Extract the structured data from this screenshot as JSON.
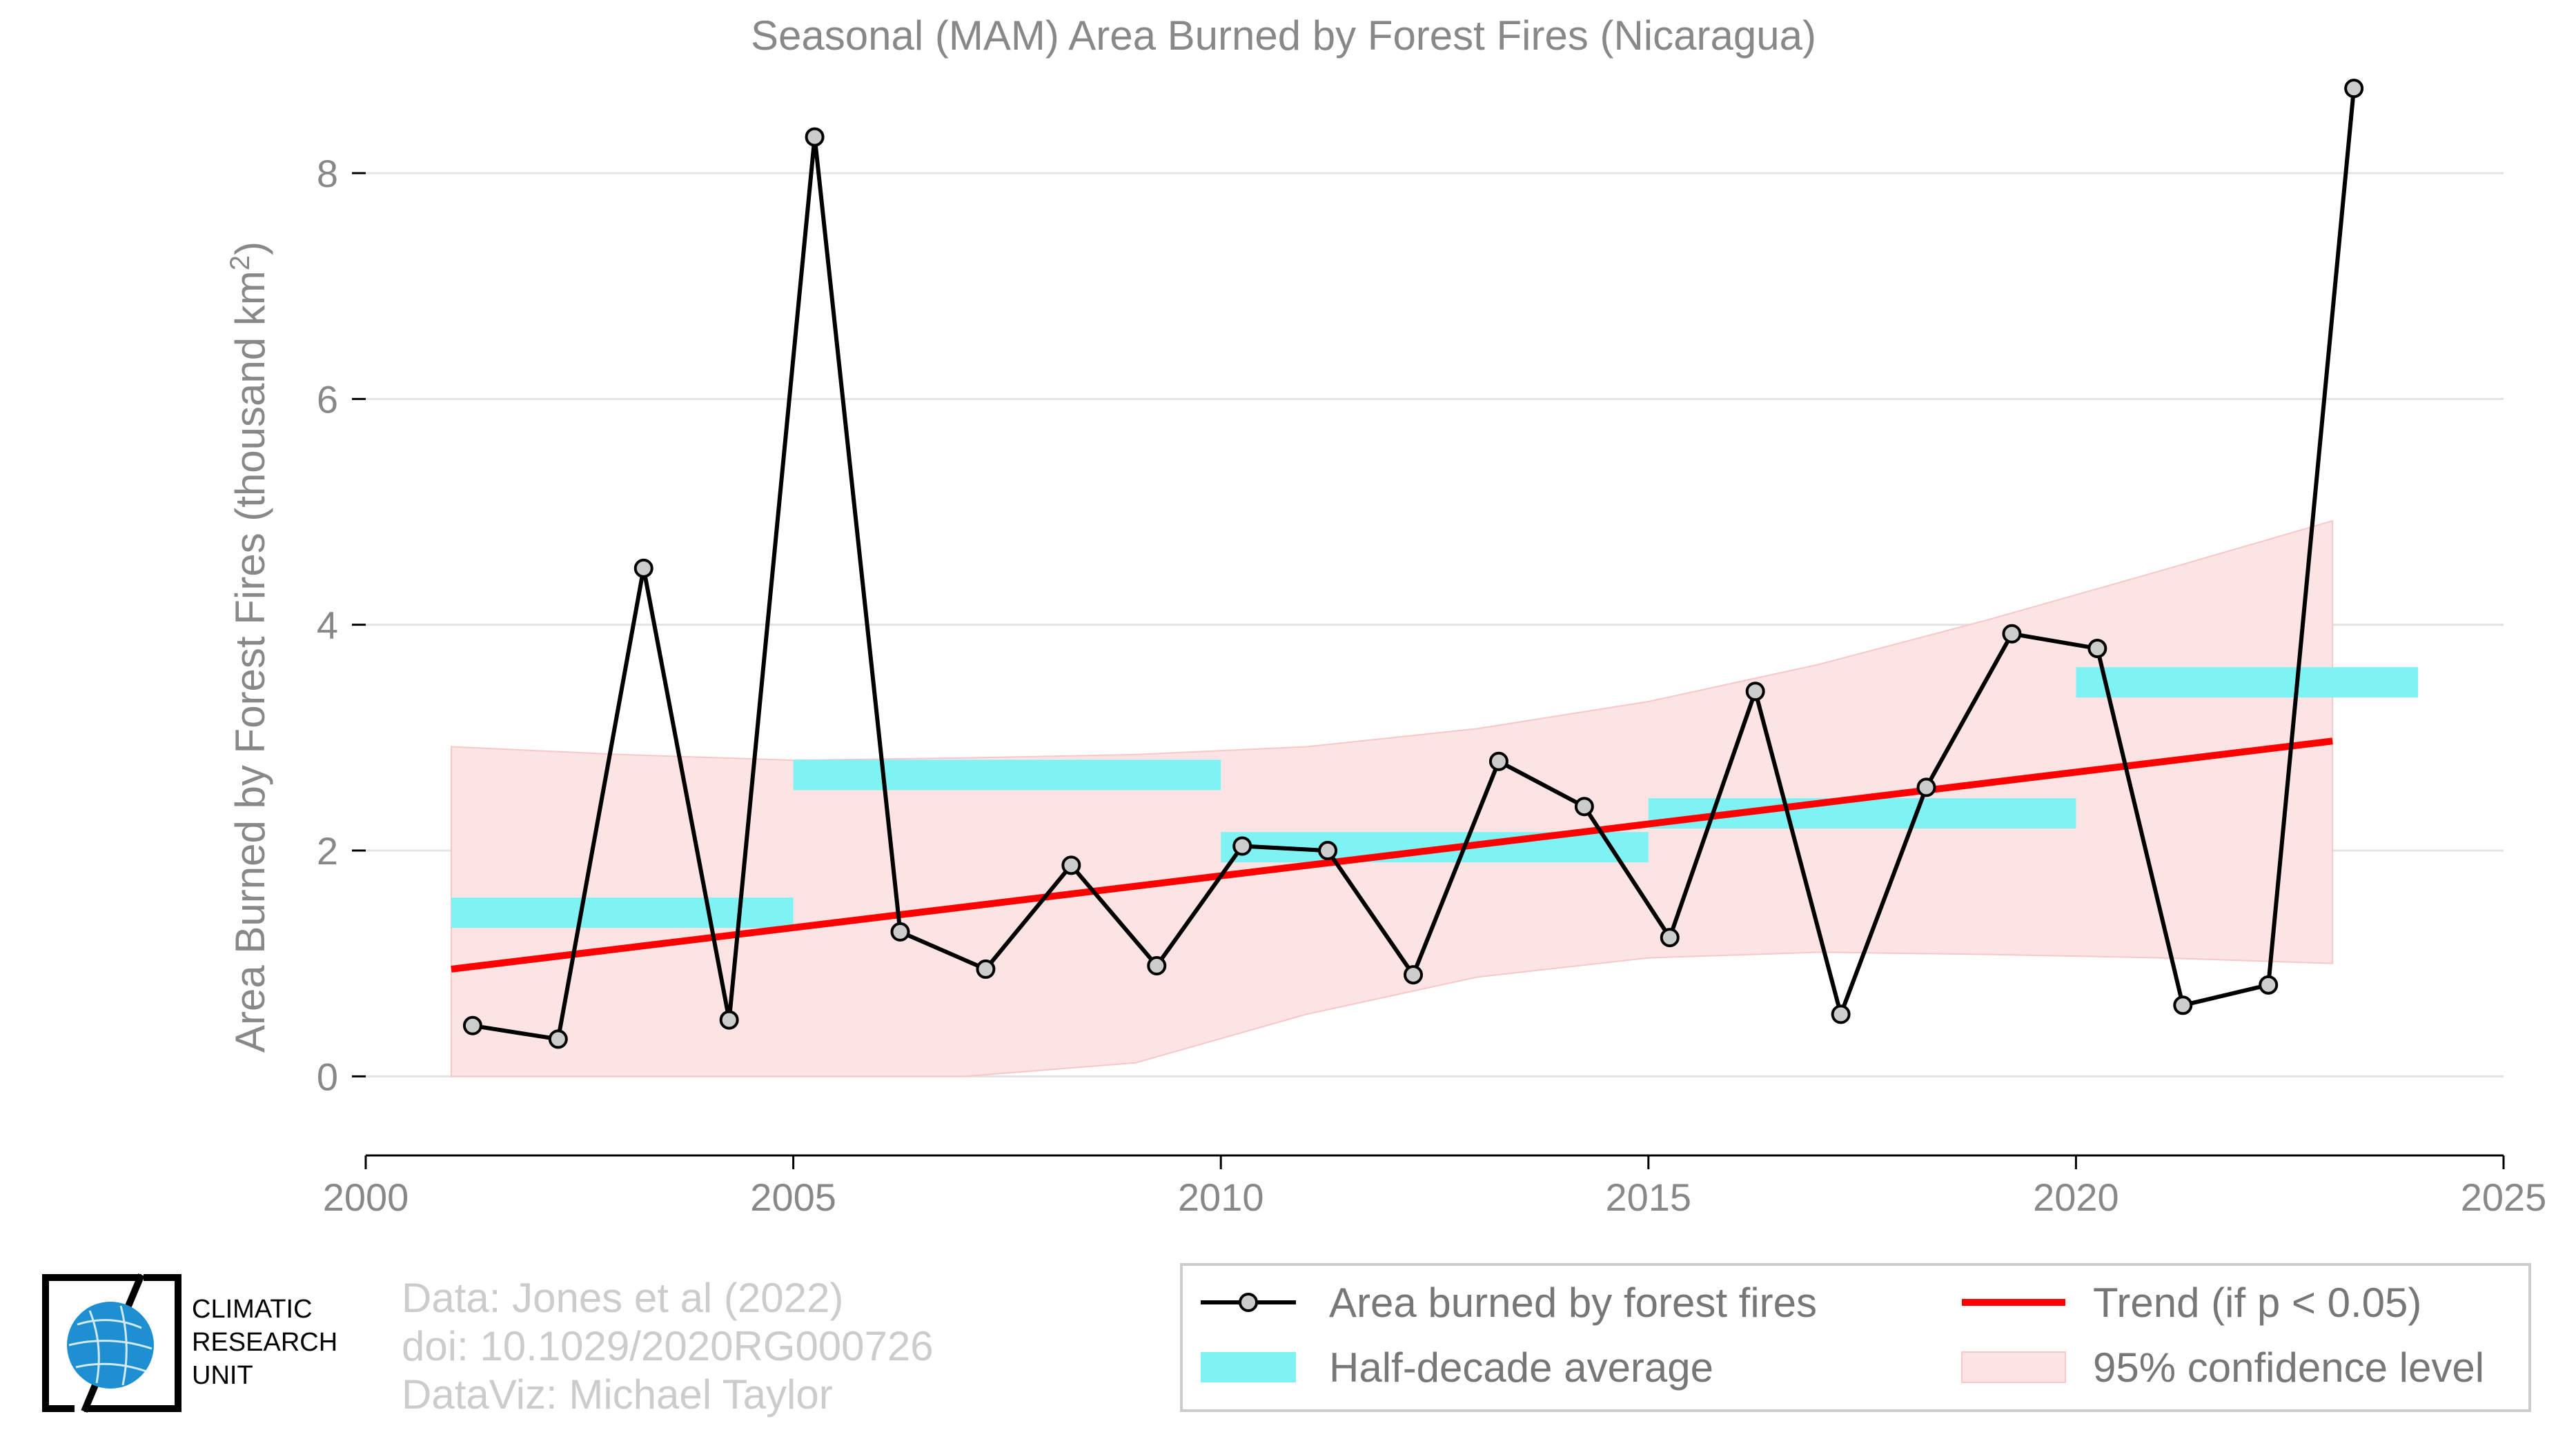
{
  "chart_data": {
    "type": "line",
    "title": "Seasonal (MAM) Area Burned by Forest Fires (Nicaragua)",
    "xlabel": "",
    "ylabel": "Area Burned by Forest Fires (thousand km",
    "ylabel_sup": "2",
    "ylabel_close": ")",
    "xlim": [
      2000,
      2025
    ],
    "ylim": [
      -0.7,
      8.8
    ],
    "x_ticks": [
      2000,
      2005,
      2010,
      2015,
      2020,
      2025
    ],
    "x_tick_labels": [
      "2000",
      "2005",
      "2010",
      "2015",
      "2020",
      "2025"
    ],
    "y_ticks": [
      0,
      2,
      4,
      6,
      8
    ],
    "y_tick_labels": [
      "0",
      "2",
      "4",
      "6",
      "8"
    ],
    "grid": "horizontal",
    "legend_position": "bottom-right",
    "series": [
      {
        "name": "Area burned by forest fires",
        "color": "#000000",
        "marker_fill": "#cccccc",
        "x": [
          2001,
          2002,
          2003,
          2004,
          2005,
          2006,
          2007,
          2008,
          2009,
          2010,
          2011,
          2012,
          2013,
          2014,
          2015,
          2016,
          2017,
          2018,
          2019,
          2020,
          2021,
          2022,
          2023
        ],
        "values": [
          0.45,
          0.33,
          4.5,
          0.5,
          8.32,
          1.28,
          0.95,
          1.87,
          0.98,
          2.04,
          2.0,
          0.9,
          2.79,
          2.39,
          1.23,
          3.41,
          0.55,
          2.56,
          3.92,
          3.79,
          0.63,
          0.81,
          8.75
        ]
      }
    ],
    "half_decade_average": {
      "name": "Half-decade average",
      "color": "#7ff2f4",
      "segments": [
        {
          "x0": 2001,
          "x1": 2005,
          "value": 1.45
        },
        {
          "x0": 2005,
          "x1": 2010,
          "value": 2.67
        },
        {
          "x0": 2010,
          "x1": 2015,
          "value": 2.03
        },
        {
          "x0": 2015,
          "x1": 2020,
          "value": 2.33
        },
        {
          "x0": 2020,
          "x1": 2024,
          "value": 3.49
        }
      ]
    },
    "trend": {
      "name": "Trend (if p < 0.05)",
      "color": "#ff0000",
      "x": [
        2001,
        2023
      ],
      "values": [
        0.95,
        2.97
      ]
    },
    "confidence_band": {
      "name": "95% confidence level",
      "color": "#fde4e4",
      "x": [
        2001,
        2003,
        2005,
        2007,
        2009,
        2011,
        2013,
        2015,
        2017,
        2019,
        2021,
        2023
      ],
      "upper": [
        2.92,
        2.85,
        2.8,
        2.82,
        2.85,
        2.92,
        3.08,
        3.32,
        3.65,
        4.05,
        4.48,
        4.92
      ],
      "lower": [
        0.0,
        0.0,
        0.0,
        0.0,
        0.12,
        0.55,
        0.88,
        1.05,
        1.1,
        1.08,
        1.05,
        1.0
      ]
    }
  },
  "credits": {
    "line1": "Data: Jones et al (2022)",
    "line2": "doi: 10.1029/2020RG000726",
    "line3": "DataViz: Michael Taylor"
  },
  "logo": {
    "line1": "CLIMATIC",
    "line2": "RESEARCH",
    "line3": "UNIT",
    "globe_color": "#1e90d2"
  },
  "legend": {
    "area": "Area burned by forest fires",
    "trend": "Trend (if p < 0.05)",
    "half": "Half-decade average",
    "conf": "95% confidence level"
  }
}
